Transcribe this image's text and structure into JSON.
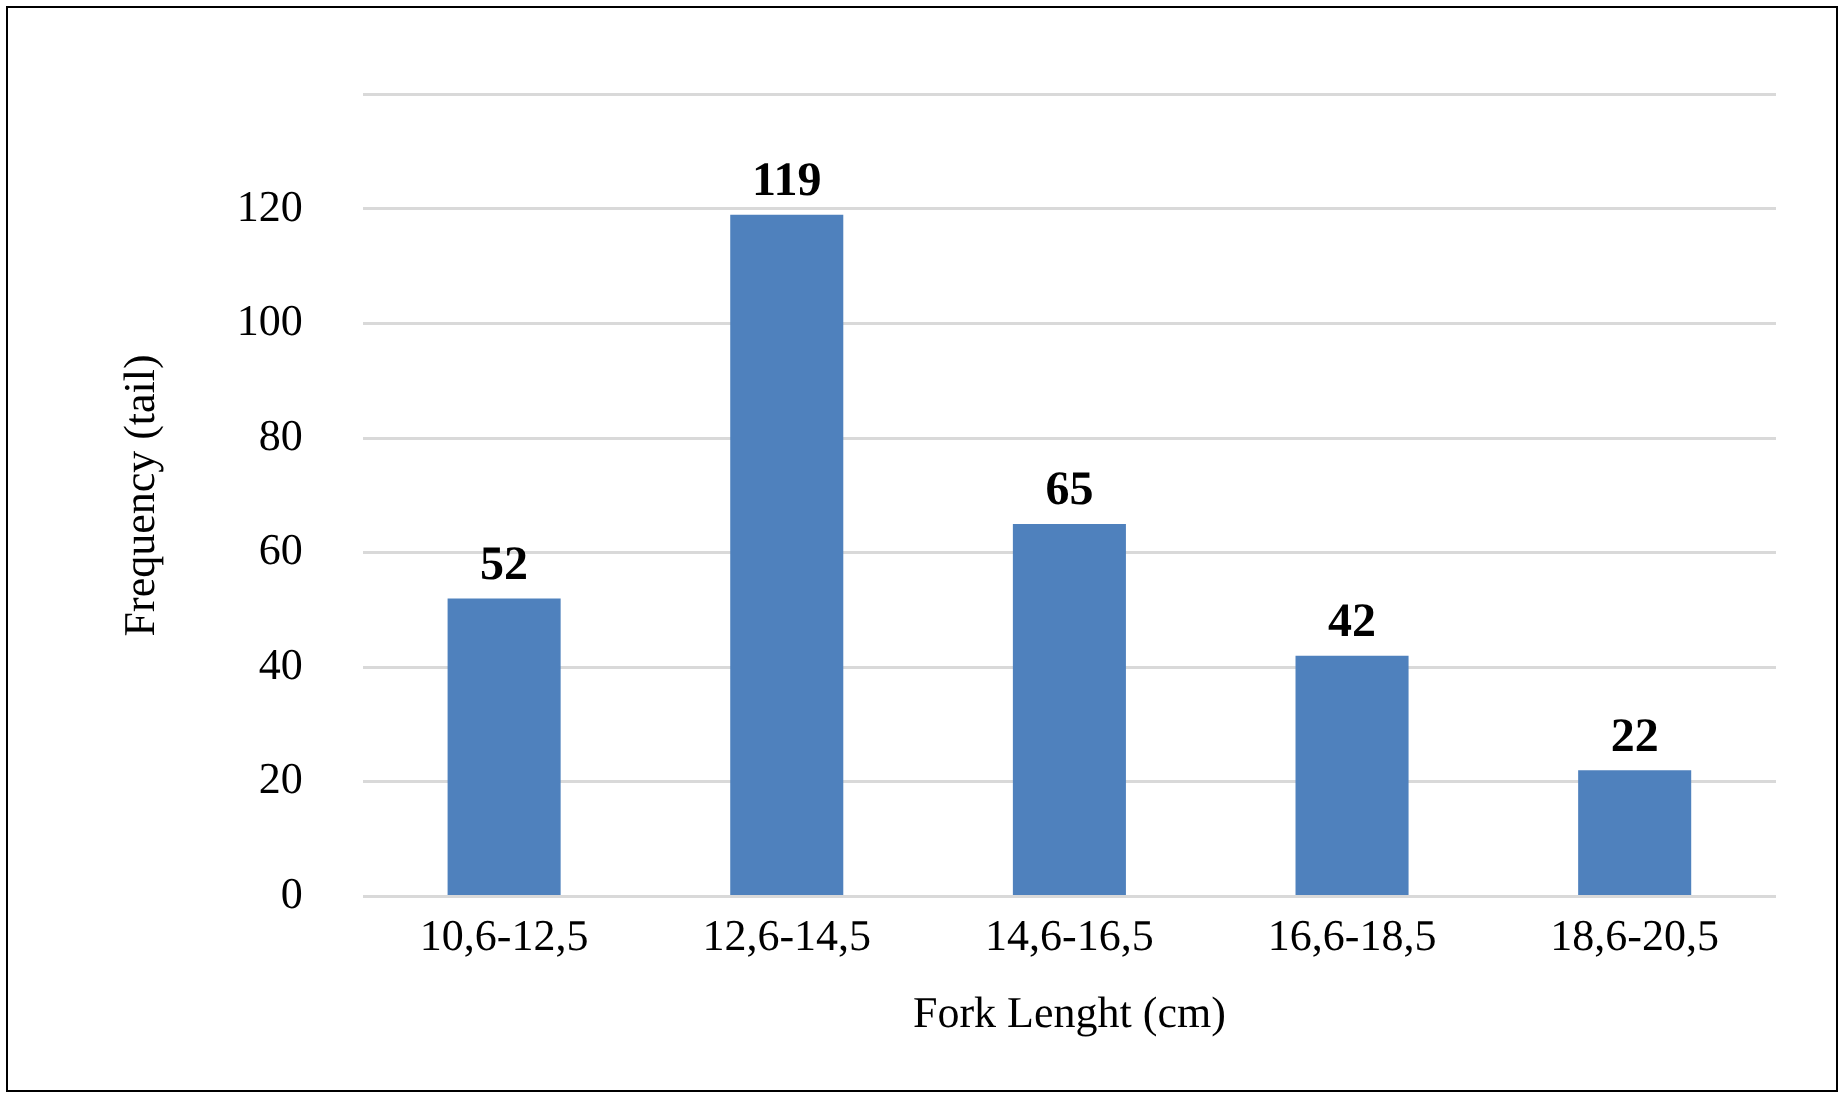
{
  "chart_data": {
    "type": "bar",
    "xlabel": "Fork Lenght (cm)",
    "ylabel": "Frequency (tail)",
    "categories": [
      "10,6-12,5",
      "12,6-14,5",
      "14,6-16,5",
      "16,6-18,5",
      "18,6-20,5"
    ],
    "values": [
      52,
      119,
      65,
      42,
      22
    ],
    "color": "#4f81bd",
    "ylim": [
      0,
      140
    ],
    "yticks": [
      0,
      20,
      40,
      60,
      80,
      100,
      120,
      {
        "value": 140,
        "label": null
      }
    ],
    "grid": "y",
    "data_labels": true
  }
}
